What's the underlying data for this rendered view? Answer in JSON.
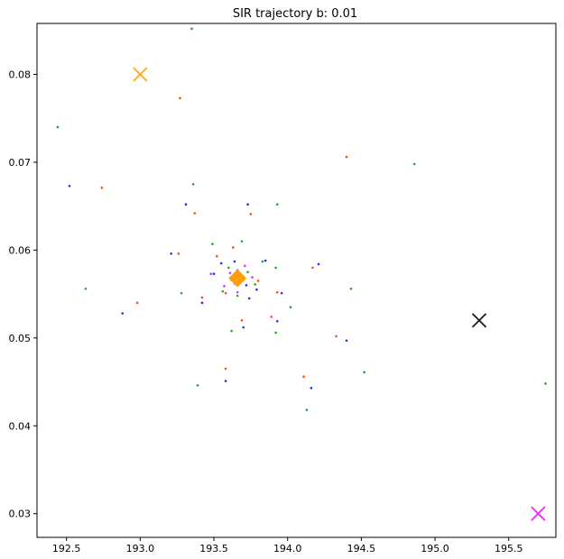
{
  "chart_data": {
    "type": "scatter",
    "title": "SIR trajectory b: 0.01",
    "xlabel": "",
    "ylabel": "",
    "xlim": [
      192.3,
      195.82
    ],
    "ylim": [
      0.0273,
      0.0858
    ],
    "xticks": [
      192.5,
      193.0,
      193.5,
      194.0,
      194.5,
      195.0,
      195.5
    ],
    "xtick_labels": [
      "192.5",
      "193.0",
      "193.5",
      "194.0",
      "194.5",
      "195.0",
      "195.5"
    ],
    "yticks": [
      0.03,
      0.04,
      0.05,
      0.06,
      0.07,
      0.08
    ],
    "ytick_labels": [
      "0.03",
      "0.04",
      "0.05",
      "0.06",
      "0.07",
      "0.08"
    ],
    "grid": false,
    "series": [
      {
        "color": "#2ca02c",
        "marker": "dot",
        "points": [
          [
            193.35,
            0.0852
          ],
          [
            192.44,
            0.074
          ],
          [
            194.86,
            0.0698
          ],
          [
            193.36,
            0.0675
          ],
          [
            193.93,
            0.0652
          ],
          [
            193.69,
            0.061
          ],
          [
            192.63,
            0.0556
          ],
          [
            193.28,
            0.0551
          ],
          [
            194.43,
            0.0556
          ],
          [
            194.02,
            0.0535
          ],
          [
            193.62,
            0.0508
          ],
          [
            193.92,
            0.0506
          ],
          [
            194.52,
            0.0461
          ],
          [
            193.39,
            0.0446
          ],
          [
            194.13,
            0.0418
          ],
          [
            195.75,
            0.0448
          ],
          [
            193.49,
            0.0607
          ],
          [
            193.56,
            0.0553
          ],
          [
            193.92,
            0.058
          ],
          [
            193.83,
            0.0587
          ],
          [
            193.66,
            0.0548
          ],
          [
            193.78,
            0.0561
          ],
          [
            193.6,
            0.058
          ],
          [
            193.73,
            0.0575
          ]
        ]
      },
      {
        "color": "#ff4a1c",
        "marker": "dot",
        "points": [
          [
            193.27,
            0.0773
          ],
          [
            192.74,
            0.0671
          ],
          [
            194.4,
            0.0706
          ],
          [
            193.37,
            0.0642
          ],
          [
            193.75,
            0.0641
          ],
          [
            193.26,
            0.0596
          ],
          [
            193.63,
            0.0603
          ],
          [
            193.42,
            0.0546
          ],
          [
            192.98,
            0.054
          ],
          [
            193.93,
            0.0552
          ],
          [
            193.89,
            0.0524
          ],
          [
            193.69,
            0.052
          ],
          [
            194.33,
            0.0502
          ],
          [
            193.58,
            0.0465
          ],
          [
            194.11,
            0.0456
          ],
          [
            194.17,
            0.058
          ],
          [
            193.52,
            0.0593
          ],
          [
            193.67,
            0.0571
          ],
          [
            193.8,
            0.0565
          ],
          [
            193.58,
            0.0551
          ]
        ]
      },
      {
        "color": "#2b2bf5",
        "marker": "dot",
        "points": [
          [
            192.52,
            0.0673
          ],
          [
            193.31,
            0.0652
          ],
          [
            193.73,
            0.0652
          ],
          [
            193.21,
            0.0596
          ],
          [
            193.64,
            0.0587
          ],
          [
            193.85,
            0.0588
          ],
          [
            194.21,
            0.0584
          ],
          [
            193.5,
            0.0573
          ],
          [
            193.62,
            0.0566
          ],
          [
            193.72,
            0.056
          ],
          [
            193.79,
            0.0555
          ],
          [
            193.96,
            0.0551
          ],
          [
            193.42,
            0.054
          ],
          [
            192.88,
            0.0528
          ],
          [
            193.93,
            0.0519
          ],
          [
            193.7,
            0.0512
          ],
          [
            194.4,
            0.0497
          ],
          [
            193.58,
            0.0451
          ],
          [
            194.16,
            0.0443
          ],
          [
            193.66,
            0.0577
          ],
          [
            193.55,
            0.0585
          ],
          [
            193.74,
            0.0545
          ]
        ]
      },
      {
        "color": "#cc33ff",
        "marker": "dot",
        "points": [
          [
            193.61,
            0.0574
          ],
          [
            193.68,
            0.0566
          ],
          [
            193.57,
            0.0559
          ],
          [
            193.71,
            0.0582
          ],
          [
            193.64,
            0.0562
          ],
          [
            193.76,
            0.0569
          ],
          [
            193.48,
            0.0573
          ],
          [
            193.66,
            0.0552
          ]
        ]
      }
    ],
    "markers": [
      {
        "x": 193.0,
        "y": 0.08,
        "shape": "x",
        "color": "#ffa51f"
      },
      {
        "x": 195.3,
        "y": 0.052,
        "shape": "x",
        "color": "#1a1a1a"
      },
      {
        "x": 195.7,
        "y": 0.03,
        "shape": "x",
        "color": "#e633f5"
      },
      {
        "x": 193.66,
        "y": 0.0568,
        "shape": "diamond",
        "color": "#ff9e0d"
      }
    ]
  }
}
